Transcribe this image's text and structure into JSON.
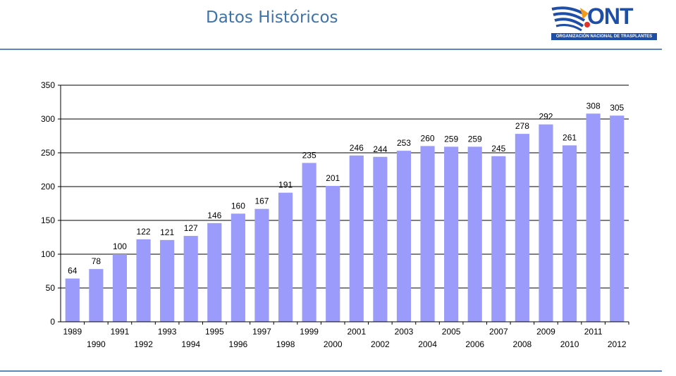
{
  "header": {
    "title": "Datos Históricos",
    "logo_text": "ONT",
    "logo_subtitle": "ORGANIZACIÓN NACIONAL DE TRASPLANTES"
  },
  "colors": {
    "bar": "#9b9bfb",
    "title": "#3f73a8",
    "rule": "#5b88bb",
    "logo_blue": "#1f4ea6",
    "logo_orange": "#f39a1e"
  },
  "chart_data": {
    "type": "bar",
    "categories": [
      "1989",
      "1990",
      "1991",
      "1992",
      "1993",
      "1994",
      "1995",
      "1996",
      "1997",
      "1998",
      "1999",
      "2000",
      "2001",
      "2002",
      "2003",
      "2004",
      "2005",
      "2006",
      "2007",
      "2008",
      "2009",
      "2010",
      "2011",
      "2012"
    ],
    "values": [
      64,
      78,
      100,
      122,
      121,
      127,
      146,
      160,
      167,
      191,
      235,
      201,
      246,
      244,
      253,
      260,
      259,
      259,
      245,
      278,
      292,
      261,
      308,
      305
    ],
    "y_ticks": [
      0,
      50,
      100,
      150,
      200,
      250,
      300,
      350
    ],
    "ylim": [
      0,
      350
    ],
    "grid": true,
    "data_labels": true,
    "title": "",
    "xlabel": "",
    "ylabel": ""
  }
}
